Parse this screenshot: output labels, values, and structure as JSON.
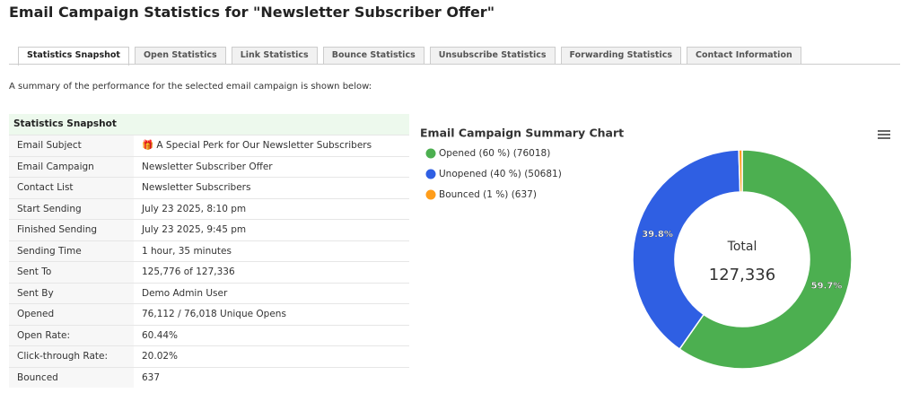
{
  "header": {
    "title": "Email Campaign Statistics for \"Newsletter Subscriber Offer\""
  },
  "tabs": [
    "Statistics Snapshot",
    "Open Statistics",
    "Link Statistics",
    "Bounce Statistics",
    "Unsubscribe Statistics",
    "Forwarding Statistics",
    "Contact Information"
  ],
  "summary": "A summary of the performance for the selected email campaign is shown below:",
  "table": {
    "title": "Statistics Snapshot",
    "rows": [
      [
        "Email Subject",
        "🎁 A Special Perk for Our Newsletter Subscribers"
      ],
      [
        "Email Campaign",
        "Newsletter Subscriber Offer"
      ],
      [
        "Contact List",
        "Newsletter Subscribers"
      ],
      [
        "Start Sending",
        "July 23 2025, 8:10 pm"
      ],
      [
        "Finished Sending",
        "July 23 2025, 9:45 pm"
      ],
      [
        "Sending Time",
        "1 hour, 35 minutes"
      ],
      [
        "Sent To",
        "125,776 of 127,336"
      ],
      [
        "Sent By",
        "Demo Admin User"
      ],
      [
        "Opened",
        "76,112 / 76,018 Unique Opens"
      ],
      [
        "Open Rate:",
        "60.44%"
      ],
      [
        "Click-through Rate:",
        "20.02%"
      ],
      [
        "Bounced",
        "637"
      ]
    ]
  },
  "chart_data": {
    "type": "donut",
    "title": "Email Campaign Summary Chart",
    "categories": [
      "Opened (60 %) (76018)",
      "Unopened (40 %) (50681)",
      "Bounced (1 %) (637)"
    ],
    "values": [
      76018,
      50681,
      637
    ],
    "value_labels": [
      "59.7%",
      "39.8%",
      null
    ],
    "colors": [
      "#4caf50",
      "#2f5fe3",
      "#ff9d1a"
    ],
    "legend": "top-left",
    "center_title": "Total",
    "total": {
      "value": 127336,
      "label": "127,336"
    }
  }
}
